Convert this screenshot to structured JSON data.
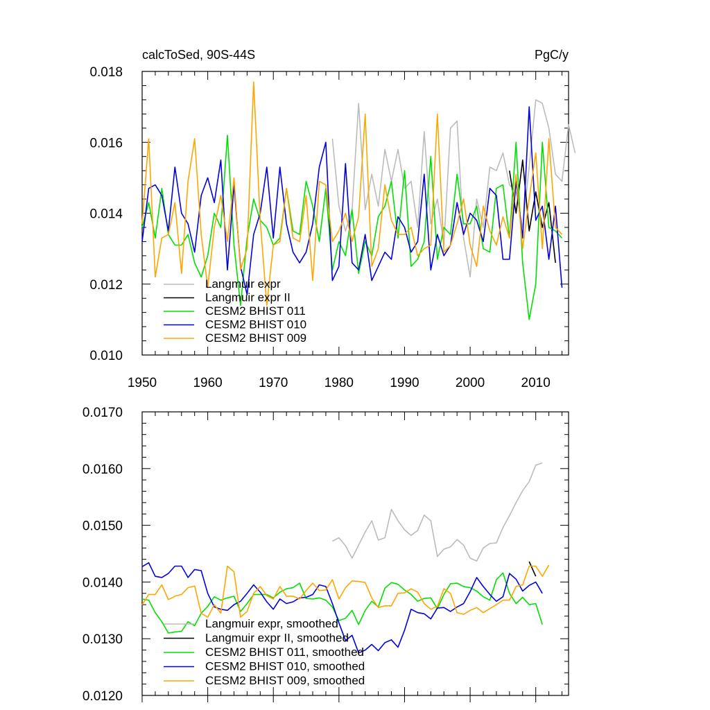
{
  "chart_data": [
    {
      "type": "line",
      "title": "calcToSed, 90S-44S",
      "units_label": "PgC/y",
      "xlim": [
        1950,
        2015
      ],
      "ylim": [
        0.01,
        0.018
      ],
      "x_tick_values": [
        1950,
        1960,
        1970,
        1980,
        1990,
        2000,
        2010
      ],
      "x_tick_labels": [
        "1950",
        "1960",
        "1970",
        "1980",
        "1990",
        "2000",
        "2010"
      ],
      "y_tick_values": [
        0.01,
        0.012,
        0.014,
        0.016,
        0.018
      ],
      "y_tick_labels": [
        "0.010",
        "0.012",
        "0.014",
        "0.016",
        "0.018"
      ],
      "legend_position": "bottom-left",
      "series": [
        {
          "name": "Langmuir expr",
          "color": "#bbbbbb",
          "x_start": 1979,
          "values": [
            0.0161,
            0.0142,
            0.0135,
            0.0141,
            0.0171,
            0.0141,
            0.0151,
            0.0142,
            0.0158,
            0.0149,
            0.0158,
            0.0147,
            0.0149,
            0.0136,
            0.0163,
            0.0137,
            0.0144,
            0.0131,
            0.0164,
            0.0166,
            0.0133,
            0.0122,
            0.0144,
            0.0136,
            0.0153,
            0.0152,
            0.0157,
            0.0148,
            0.0146,
            0.0136,
            0.0153,
            0.0172,
            0.0171,
            0.0164,
            0.0151,
            0.0149,
            0.0165,
            0.0157
          ]
        },
        {
          "name": "Langmuir expr II",
          "color": "#000000",
          "x_start": 2006,
          "values": [
            0.0152,
            0.014,
            0.0155,
            0.0135,
            0.0146,
            0.0136,
            0.0143,
            0.0126
          ]
        },
        {
          "name": "CESM2 BHIST 011",
          "color": "#00e000",
          "x_start": 1950,
          "values": [
            0.0136,
            0.0143,
            0.0133,
            0.0147,
            0.0134,
            0.0131,
            0.0131,
            0.0134,
            0.0126,
            0.0122,
            0.0128,
            0.014,
            0.0136,
            0.0162,
            0.0131,
            0.0114,
            0.0133,
            0.0144,
            0.0138,
            0.0136,
            0.0131,
            0.0133,
            0.0147,
            0.0135,
            0.0134,
            0.0149,
            0.0142,
            0.0132,
            0.0147,
            0.0124,
            0.0132,
            0.0128,
            0.0141,
            0.0123,
            0.0132,
            0.0128,
            0.0139,
            0.0142,
            0.0149,
            0.0133,
            0.0152,
            0.0125,
            0.0127,
            0.0132,
            0.0156,
            0.0127,
            0.0136,
            0.0134,
            0.0151,
            0.0137,
            0.0137,
            0.0142,
            0.013,
            0.0129,
            0.0147,
            0.0148,
            0.0133,
            0.016,
            0.0126,
            0.011,
            0.012,
            0.016,
            0.0136,
            0.0135,
            0.0133
          ]
        },
        {
          "name": "CESM2 BHIST 010",
          "color": "#0000e0",
          "x_start": 1950,
          "values": [
            0.0132,
            0.0147,
            0.0148,
            0.0145,
            0.0135,
            0.0153,
            0.014,
            0.0137,
            0.0129,
            0.0145,
            0.015,
            0.0143,
            0.0155,
            0.0124,
            0.0148,
            0.0125,
            0.0117,
            0.0134,
            0.014,
            0.0153,
            0.0133,
            0.0153,
            0.0137,
            0.0129,
            0.0126,
            0.0129,
            0.0137,
            0.0153,
            0.016,
            0.0121,
            0.0125,
            0.0154,
            0.0126,
            0.0124,
            0.0134,
            0.0121,
            0.0125,
            0.0129,
            0.0127,
            0.0139,
            0.0136,
            0.0129,
            0.0132,
            0.0151,
            0.0124,
            0.0134,
            0.0128,
            0.0131,
            0.0143,
            0.0134,
            0.014,
            0.0138,
            0.0132,
            0.0147,
            0.0145,
            0.0127,
            0.0127,
            0.0149,
            0.0133,
            0.017,
            0.0138,
            0.0142,
            0.0127,
            0.0142,
            0.0119
          ]
        },
        {
          "name": "CESM2 BHIST 009",
          "color": "#ffa500",
          "x_start": 1950,
          "values": [
            0.0137,
            0.0161,
            0.0122,
            0.0133,
            0.0134,
            0.0143,
            0.0123,
            0.0149,
            0.0161,
            0.0134,
            0.0119,
            0.0136,
            0.0145,
            0.0132,
            0.015,
            0.0124,
            0.013,
            0.0177,
            0.0138,
            0.0114,
            0.0131,
            0.0132,
            0.0147,
            0.0133,
            0.0132,
            0.0145,
            0.0121,
            0.0149,
            0.0148,
            0.0132,
            0.0135,
            0.014,
            0.0132,
            0.0139,
            0.0168,
            0.0125,
            0.013,
            0.0148,
            0.0138,
            0.0134,
            0.0134,
            0.0136,
            0.0128,
            0.013,
            0.0131,
            0.0168,
            0.0129,
            0.0131,
            0.0137,
            0.0144,
            0.0131,
            0.0125,
            0.0142,
            0.0135,
            0.0131,
            0.0139,
            0.0133,
            0.0151,
            0.013,
            0.0144,
            0.0157,
            0.013,
            0.0161,
            0.0136,
            0.0134
          ]
        }
      ]
    },
    {
      "type": "line",
      "xlim": [
        1950,
        2015
      ],
      "ylim": [
        0.012,
        0.017
      ],
      "x_tick_values": [
        1950,
        1960,
        1970,
        1980,
        1990,
        2000,
        2010
      ],
      "y_tick_values": [
        0.012,
        0.013,
        0.014,
        0.015,
        0.016,
        0.017
      ],
      "y_tick_labels": [
        "0.0120",
        "0.0130",
        "0.0140",
        "0.0150",
        "0.0160",
        "0.0170"
      ],
      "legend_position": "bottom-left",
      "series": [
        {
          "name": "Langmuir expr, smoothed",
          "color": "#bbbbbb",
          "x_start": 1979,
          "values": [
            0.01472,
            0.01478,
            0.01464,
            0.01442,
            0.01465,
            0.01488,
            0.01508,
            0.01474,
            0.01478,
            0.01528,
            0.01508,
            0.01492,
            0.01482,
            0.01491,
            0.01518,
            0.01508,
            0.01445,
            0.01458,
            0.01462,
            0.01475,
            0.01465,
            0.01442,
            0.01437,
            0.0146,
            0.01468,
            0.01469,
            0.01496,
            0.01517,
            0.0154,
            0.01561,
            0.01577,
            0.01606,
            0.0161
          ]
        },
        {
          "name": "Langmuir expr II, smoothed",
          "color": "#000000",
          "x_start": 2009,
          "values": [
            0.01436,
            0.0141
          ]
        },
        {
          "name": "CESM2 BHIST 011, smoothed",
          "color": "#00e000",
          "x_start": 1950,
          "values": [
            0.0137,
            0.01368,
            0.01346,
            0.0133,
            0.0131,
            0.01312,
            0.01313,
            0.0133,
            0.01323,
            0.01345,
            0.01357,
            0.01374,
            0.01368,
            0.01372,
            0.01375,
            0.01348,
            0.01362,
            0.01378,
            0.01378,
            0.01378,
            0.01372,
            0.01382,
            0.01388,
            0.0139,
            0.01398,
            0.01371,
            0.0137,
            0.01372,
            0.01368,
            0.01356,
            0.01332,
            0.01336,
            0.0135,
            0.01325,
            0.0135,
            0.01366,
            0.01356,
            0.01389,
            0.01399,
            0.01396,
            0.01386,
            0.01378,
            0.01366,
            0.01371,
            0.01372,
            0.01353,
            0.01378,
            0.01397,
            0.01398,
            0.01392,
            0.0139,
            0.01384,
            0.01374,
            0.01368,
            0.01404,
            0.01416,
            0.0138,
            0.01362,
            0.01373,
            0.0136,
            0.01362,
            0.01325
          ]
        },
        {
          "name": "CESM2 BHIST 010, smoothed",
          "color": "#0000e0",
          "x_start": 1950,
          "values": [
            0.01427,
            0.01434,
            0.0141,
            0.01408,
            0.01415,
            0.01428,
            0.01428,
            0.01408,
            0.01422,
            0.0142,
            0.0138,
            0.01356,
            0.01352,
            0.0135,
            0.0136,
            0.01366,
            0.0138,
            0.01395,
            0.01382,
            0.01365,
            0.01352,
            0.0137,
            0.01362,
            0.01365,
            0.01372,
            0.01373,
            0.01378,
            0.01395,
            0.01392,
            0.01362,
            0.01328,
            0.01297,
            0.01306,
            0.01275,
            0.0128,
            0.0129,
            0.01279,
            0.01293,
            0.01298,
            0.01285,
            0.01315,
            0.01352,
            0.01346,
            0.01344,
            0.01335,
            0.01354,
            0.01355,
            0.01348,
            0.01356,
            0.01362,
            0.01383,
            0.01408,
            0.01392,
            0.01378,
            0.01366,
            0.01374,
            0.01415,
            0.01405,
            0.01384,
            0.01394,
            0.014,
            0.0138
          ]
        },
        {
          "name": "CESM2 BHIST 009, smoothed",
          "color": "#ffa500",
          "x_start": 1950,
          "values": [
            0.0136,
            0.01378,
            0.01378,
            0.01395,
            0.01369,
            0.01375,
            0.01378,
            0.0139,
            0.01393,
            0.01345,
            0.01338,
            0.0136,
            0.01345,
            0.01428,
            0.01418,
            0.01338,
            0.01348,
            0.0138,
            0.01392,
            0.01376,
            0.0137,
            0.01392,
            0.01375,
            0.01375,
            0.0137,
            0.01385,
            0.01398,
            0.01385,
            0.01386,
            0.01404,
            0.0137,
            0.0139,
            0.01402,
            0.01401,
            0.01399,
            0.01372,
            0.01355,
            0.01358,
            0.01358,
            0.0138,
            0.01381,
            0.01388,
            0.01382,
            0.01362,
            0.01352,
            0.01357,
            0.01388,
            0.0138,
            0.01346,
            0.01343,
            0.0135,
            0.01355,
            0.01346,
            0.01353,
            0.0136,
            0.01368,
            0.01368,
            0.01392,
            0.01395,
            0.01428,
            0.01428,
            0.0141,
            0.0143
          ]
        }
      ]
    }
  ]
}
